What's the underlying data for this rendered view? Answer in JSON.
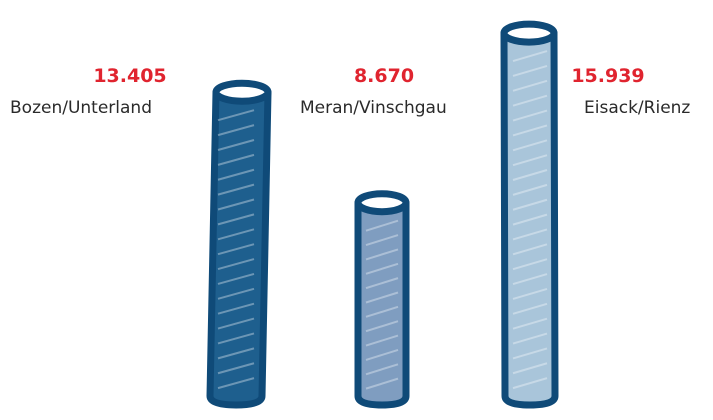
{
  "chart_data": {
    "type": "bar",
    "categories": [
      "Bozen/Unterland",
      "Meran/Vinschgau",
      "Eisack/Rienz"
    ],
    "values": [
      13405,
      8670,
      15939
    ],
    "value_labels": [
      "13.405",
      "8.670",
      "15.939"
    ],
    "ylim": [
      0,
      16500
    ],
    "grid": false,
    "legend": "none",
    "colors": {
      "outline": "#0f4a78",
      "fills": [
        "#1e5f8e",
        "#7f9dc0",
        "#a9c5da"
      ],
      "value_text": "#e0242f",
      "category_text": "#2a2a2a"
    }
  }
}
